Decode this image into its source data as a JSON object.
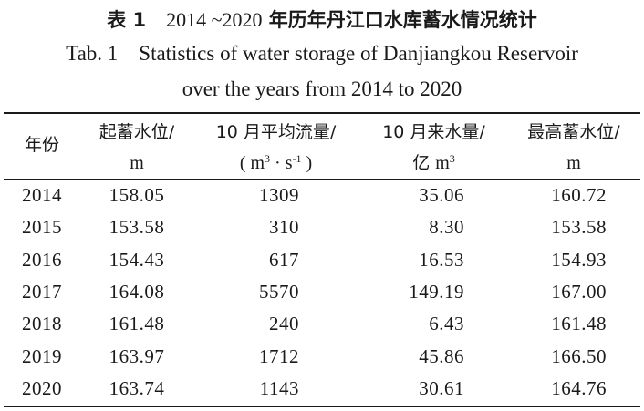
{
  "caption": {
    "cn_label": "表 1",
    "cn_years": "2014 ~2020",
    "cn_title": "年历年丹江口水库蓄水情况统计",
    "en_line1": "Tab. 1    Statistics of water storage of Danjiangkou Reservoir",
    "en_line2": "over the years from 2014 to 2020"
  },
  "table": {
    "headers": [
      {
        "line1": "年份",
        "line2": ""
      },
      {
        "line1": "起蓄水位/",
        "line2": "m"
      },
      {
        "line1": "10 月平均流量/",
        "line2": "( m3 · s-1 )"
      },
      {
        "line1": "10 月来水量/",
        "line2": "亿 m3"
      },
      {
        "line1": "最高蓄水位/",
        "line2": "m"
      }
    ],
    "rows": [
      [
        "2014",
        "158.05",
        "1309",
        "35.06",
        "160.72"
      ],
      [
        "2015",
        "153.58",
        "310",
        "8.30",
        "153.58"
      ],
      [
        "2016",
        "154.43",
        "617",
        "16.53",
        "154.93"
      ],
      [
        "2017",
        "164.08",
        "5570",
        "149.19",
        "167.00"
      ],
      [
        "2018",
        "161.48",
        "240",
        "6.43",
        "161.48"
      ],
      [
        "2019",
        "163.97",
        "1712",
        "45.86",
        "166.50"
      ],
      [
        "2020",
        "163.74",
        "1143",
        "30.61",
        "164.76"
      ]
    ]
  }
}
